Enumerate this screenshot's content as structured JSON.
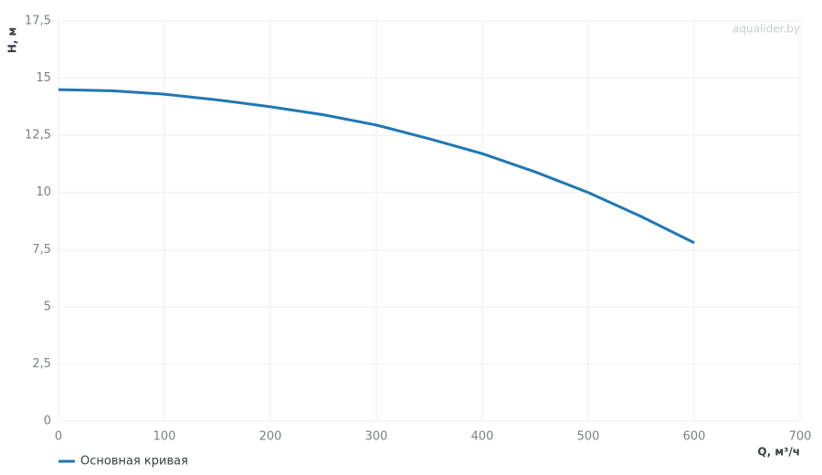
{
  "chart_data": {
    "type": "line",
    "watermark": "aqualider.by",
    "xlabel": "Q, м³/ч",
    "ylabel": "H, м",
    "x": [
      0,
      50,
      100,
      150,
      200,
      250,
      300,
      350,
      400,
      450,
      500,
      550,
      600
    ],
    "series": [
      {
        "name": "Основная кривая",
        "color": "#1f77b4",
        "values": [
          14.5,
          14.45,
          14.3,
          14.05,
          13.75,
          13.4,
          12.95,
          12.35,
          11.7,
          10.9,
          10.0,
          8.95,
          7.8
        ]
      }
    ],
    "xlim": [
      0,
      700
    ],
    "xticks": [
      0,
      100,
      200,
      300,
      400,
      500,
      600,
      700
    ],
    "ylim": [
      0,
      17.5
    ],
    "yticks": [
      0,
      {
        "value": 2.5,
        "label": "2,5"
      },
      5,
      {
        "value": 7.5,
        "label": "7,5"
      },
      10,
      {
        "value": 12.5,
        "label": "12,5"
      },
      15,
      {
        "value": 17.5,
        "label": "17,5"
      }
    ],
    "grid": true
  }
}
